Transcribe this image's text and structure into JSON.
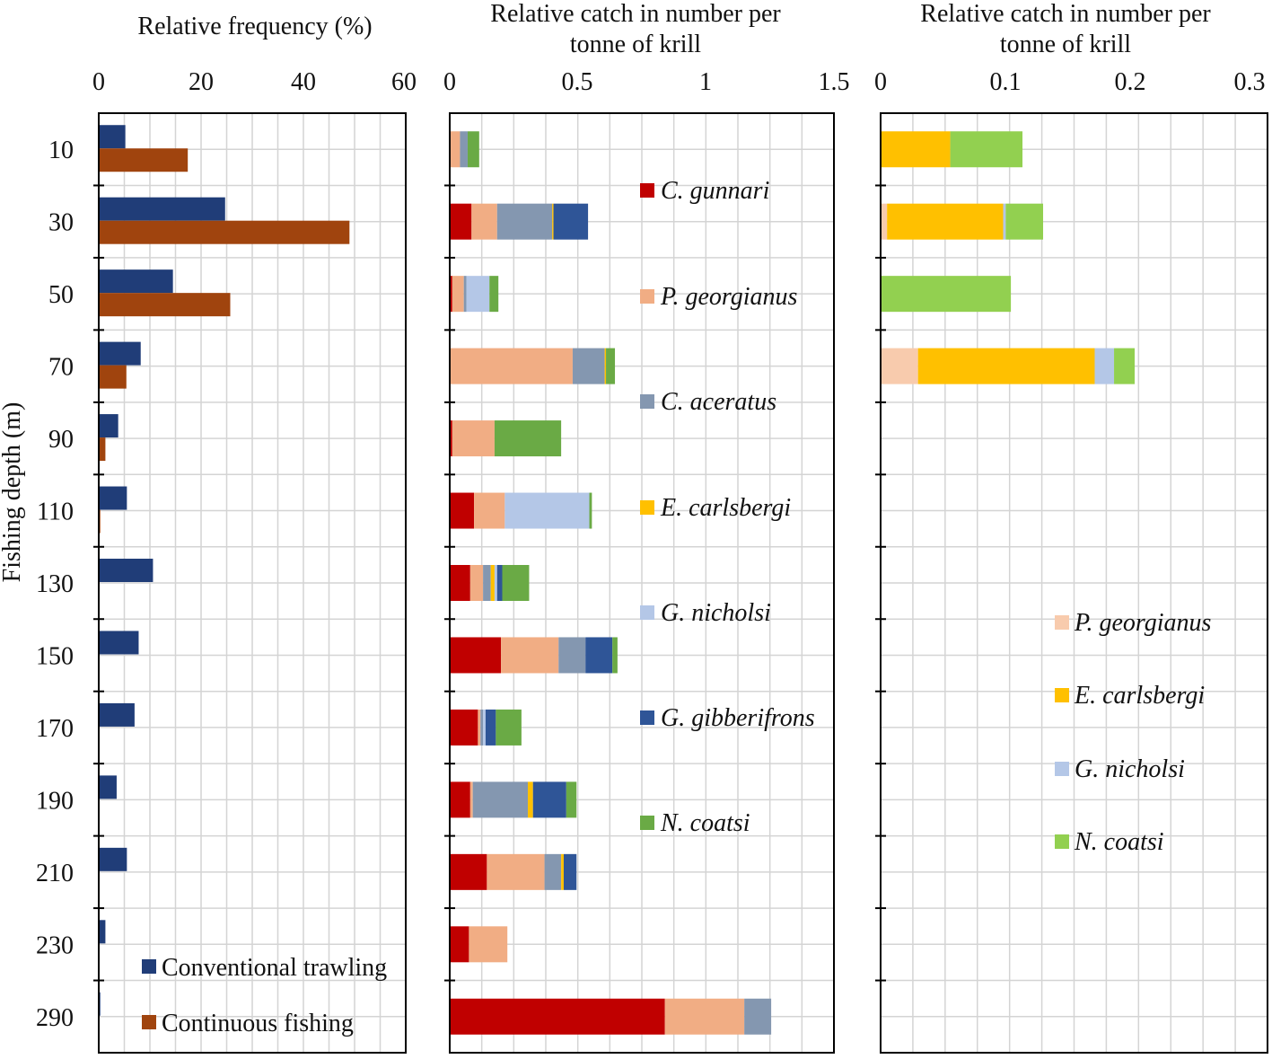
{
  "figure": {
    "ylabel": "Fishing depth (m)",
    "depths": [
      "10",
      "30",
      "50",
      "70",
      "90",
      "110",
      "130",
      "150",
      "170",
      "190",
      "210",
      "230",
      "290"
    ]
  },
  "colors": {
    "conventional": "#203d78",
    "continuous": "#a0440e",
    "C. gunnari": "#c00000",
    "P. georgianus": "#f1ad84",
    "C. aceratus": "#8497b0",
    "E. carlsbergi": "#ffc000",
    "G. nicholsi": "#b4c7e7",
    "G. gibberifrons": "#2f5597",
    "N. coatsi": "#6aaa45",
    "P. georgianus (light)": "#f8cbad",
    "N. coatsi (light)": "#92d050"
  },
  "chart_data": [
    {
      "type": "bar",
      "orientation": "horizontal",
      "title": "Relative frequency (%)",
      "ylabel": "Fishing depth (m)",
      "xlim": [
        0,
        60
      ],
      "xticks": [
        "0",
        "20",
        "40",
        "60"
      ],
      "categories": [
        "10",
        "30",
        "50",
        "70",
        "90",
        "110",
        "130",
        "150",
        "170",
        "190",
        "210",
        "230",
        "290"
      ],
      "legend_position": "bottom-right",
      "series": [
        {
          "name": "Conventional trawling",
          "values": [
            5.2,
            24.7,
            14.5,
            8.2,
            3.8,
            5.5,
            10.6,
            7.8,
            7.0,
            3.5,
            5.5,
            1.3,
            0.3
          ]
        },
        {
          "name": "Continuous fishing",
          "values": [
            17.4,
            49.0,
            25.7,
            5.4,
            1.3,
            0.3,
            0,
            0,
            0,
            0,
            0,
            0,
            0
          ]
        }
      ]
    },
    {
      "type": "bar",
      "orientation": "horizontal",
      "stacked": true,
      "title": "Relative catch in number per tonne of krill",
      "xlim": [
        0,
        1.5
      ],
      "xticks": [
        "0",
        "0.5",
        "1",
        "1.5"
      ],
      "categories": [
        "10",
        "30",
        "50",
        "70",
        "90",
        "110",
        "130",
        "150",
        "170",
        "190",
        "210",
        "230",
        "290"
      ],
      "legend_position": "right",
      "series": [
        {
          "name": "C. gunnari",
          "values": [
            0,
            0.085,
            0.01,
            0,
            0.01,
            0.095,
            0.08,
            0.2,
            0.11,
            0.08,
            0.145,
            0.075,
            0.84
          ]
        },
        {
          "name": "P. georgianus",
          "values": [
            0.04,
            0.1,
            0.045,
            0.48,
            0.165,
            0.12,
            0.05,
            0.225,
            0.01,
            0.01,
            0.225,
            0.15,
            0.31
          ]
        },
        {
          "name": "C. aceratus",
          "values": [
            0.03,
            0.215,
            0.01,
            0.125,
            0,
            0,
            0.03,
            0.105,
            0.01,
            0.215,
            0.065,
            0,
            0.105
          ]
        },
        {
          "name": "E. carlsbergi",
          "values": [
            0,
            0.005,
            0,
            0.005,
            0,
            0,
            0.015,
            0,
            0,
            0.02,
            0.01,
            0,
            0
          ]
        },
        {
          "name": "G. nicholsi",
          "values": [
            0,
            0,
            0.09,
            0,
            0,
            0.33,
            0.01,
            0,
            0.01,
            0,
            0,
            0,
            0
          ]
        },
        {
          "name": "G. gibberifrons",
          "values": [
            0,
            0.135,
            0,
            0,
            0,
            0,
            0.02,
            0.105,
            0.04,
            0.13,
            0.05,
            0,
            0
          ]
        },
        {
          "name": "N. coatsi",
          "values": [
            0.045,
            0,
            0.035,
            0.035,
            0.26,
            0.01,
            0.105,
            0.02,
            0.1,
            0.04,
            0,
            0,
            0
          ]
        }
      ]
    },
    {
      "type": "bar",
      "orientation": "horizontal",
      "stacked": true,
      "title": "Relative catch in number per tonne of krill",
      "xlim": [
        0,
        0.3
      ],
      "xticks": [
        "0",
        "0.1",
        "0.2",
        "0.3"
      ],
      "categories": [
        "10",
        "30",
        "50",
        "70",
        "90",
        "110",
        "130",
        "150",
        "170",
        "190",
        "210",
        "230",
        "290"
      ],
      "legend_position": "right",
      "series": [
        {
          "name": "P. georgianus",
          "values": [
            0,
            0.005,
            0,
            0.029,
            0,
            0,
            0,
            0,
            0,
            0,
            0,
            0,
            0
          ]
        },
        {
          "name": "E. carlsbergi",
          "values": [
            0.054,
            0.09,
            0,
            0.137,
            0,
            0,
            0,
            0,
            0,
            0,
            0,
            0,
            0
          ]
        },
        {
          "name": "G. nicholsi",
          "values": [
            0,
            0.002,
            0,
            0.015,
            0,
            0,
            0,
            0,
            0,
            0,
            0,
            0,
            0
          ]
        },
        {
          "name": "N. coatsi",
          "values": [
            0.056,
            0.029,
            0.101,
            0.016,
            0,
            0,
            0,
            0,
            0,
            0,
            0,
            0,
            0
          ]
        }
      ]
    }
  ]
}
